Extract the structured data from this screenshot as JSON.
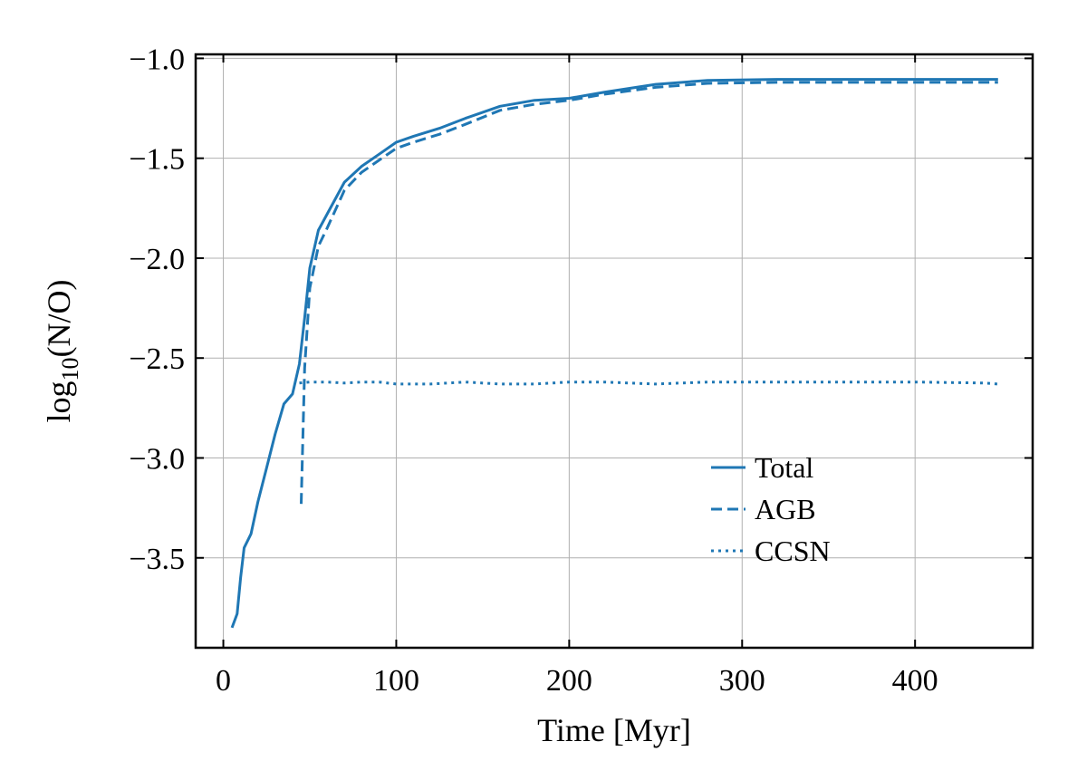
{
  "chart_data": {
    "type": "line",
    "xlabel": "Time [Myr]",
    "ylabel": {
      "base": "log",
      "subscript": "10",
      "rest": "(N/O)"
    },
    "xlim": [
      -16,
      468
    ],
    "ylim": [
      -3.95,
      -0.98
    ],
    "xticks": [
      0,
      100,
      200,
      300,
      400
    ],
    "xtick_labels": [
      "0",
      "100",
      "200",
      "300",
      "400"
    ],
    "yticks": [
      -3.5,
      -3.0,
      -2.5,
      -2.0,
      -1.5,
      -1.0
    ],
    "ytick_labels": [
      "−3.5",
      "−3.0",
      "−2.5",
      "−2.0",
      "−1.5",
      "−1.0"
    ],
    "grid": true,
    "legend_position": "lower-right",
    "series": [
      {
        "name": "Total",
        "style": "solid",
        "color": "#1f77b4",
        "x": [
          5,
          8,
          10,
          12,
          16,
          20,
          25,
          30,
          35,
          40,
          44,
          47,
          50,
          55,
          60,
          70,
          80,
          90,
          100,
          110,
          125,
          140,
          160,
          180,
          200,
          220,
          250,
          280,
          320,
          360,
          400,
          440,
          448
        ],
        "y": [
          -3.85,
          -3.78,
          -3.6,
          -3.45,
          -3.38,
          -3.22,
          -3.05,
          -2.88,
          -2.73,
          -2.68,
          -2.53,
          -2.3,
          -2.05,
          -1.86,
          -1.78,
          -1.62,
          -1.54,
          -1.48,
          -1.42,
          -1.39,
          -1.35,
          -1.3,
          -1.24,
          -1.21,
          -1.2,
          -1.17,
          -1.13,
          -1.11,
          -1.105,
          -1.105,
          -1.105,
          -1.105,
          -1.105
        ]
      },
      {
        "name": "AGB",
        "style": "dashed",
        "color": "#1f77b4",
        "x": [
          45,
          47,
          50,
          55,
          60,
          70,
          80,
          90,
          100,
          110,
          125,
          140,
          160,
          180,
          200,
          220,
          250,
          280,
          320,
          360,
          400,
          440,
          448
        ],
        "y": [
          -3.23,
          -2.55,
          -2.15,
          -1.94,
          -1.85,
          -1.66,
          -1.57,
          -1.51,
          -1.45,
          -1.42,
          -1.38,
          -1.33,
          -1.26,
          -1.23,
          -1.21,
          -1.18,
          -1.145,
          -1.125,
          -1.12,
          -1.12,
          -1.12,
          -1.12,
          -1.12
        ]
      },
      {
        "name": "CCSN",
        "style": "dotted",
        "color": "#1f77b4",
        "x": [
          44,
          50,
          60,
          70,
          80,
          90,
          100,
          120,
          140,
          160,
          180,
          200,
          220,
          250,
          280,
          320,
          360,
          400,
          440,
          448
        ],
        "y": [
          -2.625,
          -2.62,
          -2.62,
          -2.625,
          -2.62,
          -2.62,
          -2.63,
          -2.63,
          -2.62,
          -2.63,
          -2.63,
          -2.62,
          -2.62,
          -2.63,
          -2.62,
          -2.62,
          -2.62,
          -2.62,
          -2.625,
          -2.63
        ]
      }
    ]
  }
}
